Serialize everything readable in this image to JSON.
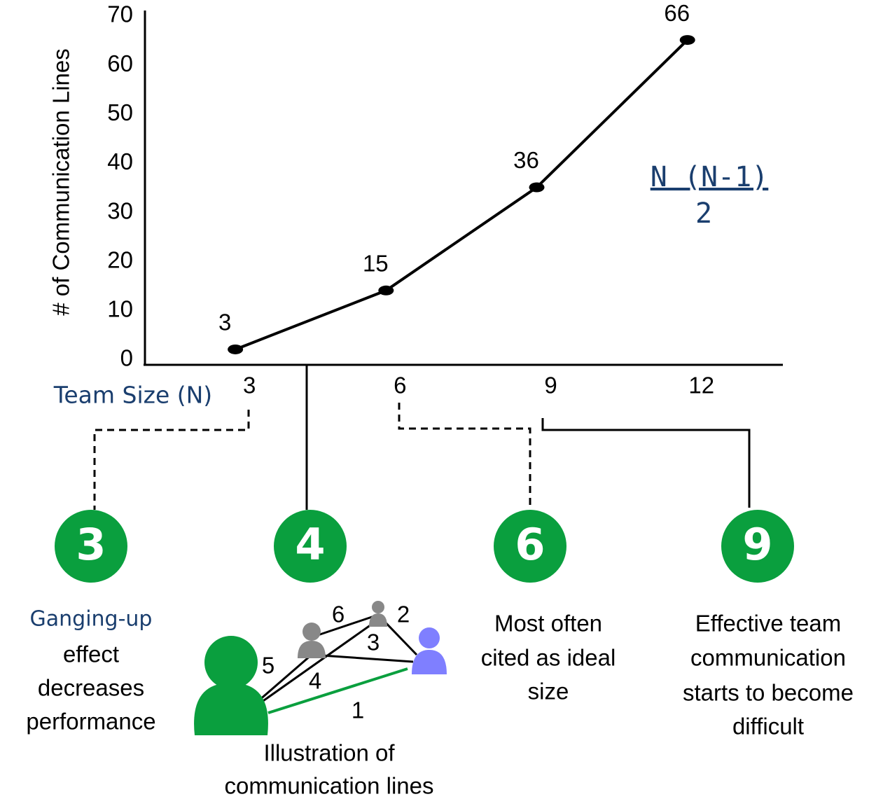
{
  "chart_data": {
    "type": "line",
    "x_label": "Team Size (N)",
    "y_label": "# of Communication Lines",
    "x": [
      3,
      6,
      9,
      12
    ],
    "values": [
      3,
      15,
      36,
      66
    ],
    "color": "#000000",
    "xlim": [
      1.2,
      13.9
    ],
    "ylim": [
      0,
      72
    ],
    "xticks": [
      3,
      6,
      9,
      12
    ],
    "yticks": [
      0,
      10,
      20,
      30,
      40,
      50,
      60,
      70
    ],
    "formula": {
      "numerator": "N (N-1)",
      "denominator": "2"
    },
    "annotations": [
      {
        "badge": "3",
        "lines": [
          "Ganging-up",
          "effect",
          "decreases",
          "performance"
        ]
      },
      {
        "badge": "4",
        "lines": [
          "Illustration of",
          "communication lines"
        ]
      },
      {
        "badge": "6",
        "lines": [
          "Most often",
          "cited as ideal",
          "size"
        ]
      },
      {
        "badge": "9",
        "lines": [
          "Effective team",
          "communication",
          "starts to become",
          "difficult"
        ]
      }
    ],
    "illustration_labels": [
      "1",
      "2",
      "3",
      "4",
      "5",
      "6"
    ]
  }
}
